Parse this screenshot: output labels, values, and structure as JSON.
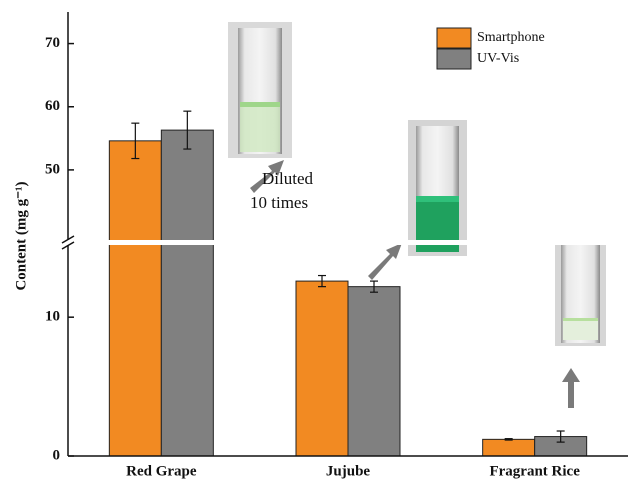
{
  "chart_data": {
    "type": "bar",
    "categories": [
      "Red Grape",
      "Jujube",
      "Fragrant Rice"
    ],
    "y_label": "Content (mg g⁻¹)",
    "ylim": [
      0,
      75
    ],
    "y_break": [
      15.2,
      38.9
    ],
    "yticks": [
      0,
      10,
      50,
      60,
      70
    ],
    "legend": "top-right",
    "annotation": [
      "Diluted",
      "10 times"
    ],
    "series": [
      {
        "name": "Smartphone",
        "color": "#f28a22",
        "values": [
          54.6,
          12.6,
          1.2
        ],
        "errors": [
          2.8,
          0.4,
          0.05
        ]
      },
      {
        "name": "UV-Vis",
        "color": "#808080",
        "values": [
          56.3,
          12.2,
          1.4
        ],
        "errors": [
          3.0,
          0.4,
          0.4
        ]
      }
    ]
  }
}
